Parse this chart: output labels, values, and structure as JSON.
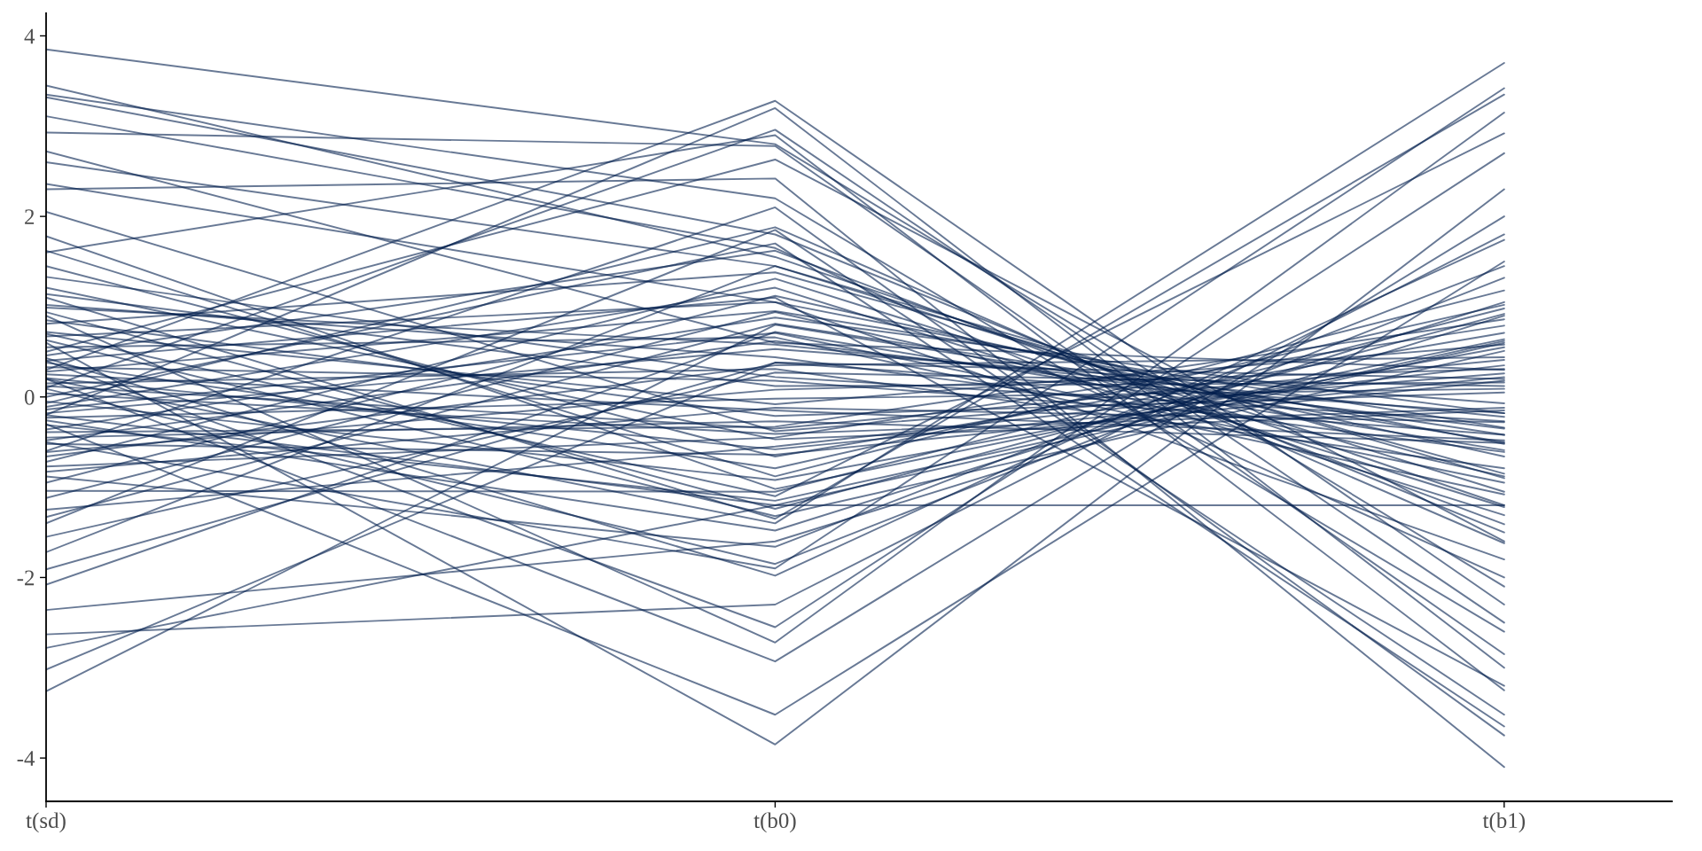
{
  "chart_data": {
    "type": "line",
    "categories": [
      "t(sd)",
      "t(b0)",
      "t(b1)"
    ],
    "color": "#03204f",
    "line_style": "solid",
    "ylim": [
      -4.48,
      4.25
    ],
    "yticks": [
      -4,
      -2,
      0,
      2,
      4
    ],
    "series": [
      {
        "values": [
          0.12,
          -0.35,
          0.41
        ]
      },
      {
        "values": [
          -0.48,
          0.62,
          -0.35
        ]
      },
      {
        "values": [
          0.85,
          -0.21,
          0.05
        ]
      },
      {
        "values": [
          -1.12,
          0.94,
          -0.88
        ]
      },
      {
        "values": [
          0.33,
          0.18,
          -0.42
        ]
      },
      {
        "values": [
          -0.05,
          -0.92,
          0.55
        ]
      },
      {
        "values": [
          -0.72,
          1.31,
          -1.22
        ]
      },
      {
        "values": [
          -0.26,
          -1.48,
          1.05
        ]
      },
      {
        "values": [
          1.02,
          0.44,
          -0.61
        ]
      },
      {
        "values": [
          0.21,
          -0.58,
          0.22
        ]
      },
      {
        "values": [
          0.67,
          1.05,
          -0.52
        ]
      },
      {
        "values": [
          -0.14,
          0.71,
          -0.95
        ]
      },
      {
        "values": [
          -0.39,
          -0.33,
          0.86
        ]
      },
      {
        "values": [
          -0.61,
          0.08,
          0.31
        ]
      },
      {
        "values": [
          0.38,
          -0.79,
          1.02
        ]
      },
      {
        "values": [
          -0.18,
          0.53,
          -0.07
        ]
      },
      {
        "values": [
          0.15,
          0.31,
          -0.79
        ]
      },
      {
        "values": [
          -0.52,
          -0.64,
          0.18
        ]
      },
      {
        "values": [
          0.72,
          -0.08,
          0.58
        ]
      },
      {
        "values": [
          -0.45,
          -0.27,
          -0.51
        ]
      },
      {
        "values": [
          1.62,
          -0.88,
          1.18
        ]
      },
      {
        "values": [
          -1.72,
          1.45,
          -1.05
        ]
      },
      {
        "values": [
          0.46,
          1.62,
          -1.41
        ]
      },
      {
        "values": [
          0.09,
          -1.85,
          1.32
        ]
      },
      {
        "values": [
          1.45,
          -0.66,
          0.71
        ]
      },
      {
        "values": [
          -1.55,
          0.27,
          0.12
        ]
      },
      {
        "values": [
          -0.83,
          -0.12,
          -0.28
        ]
      },
      {
        "values": [
          1.78,
          -1.02,
          0.64
        ]
      },
      {
        "values": [
          -1.91,
          0.38,
          -0.18
        ]
      },
      {
        "values": [
          1.21,
          -0.47,
          -0.15
        ]
      },
      {
        "values": [
          -0.95,
          1.12,
          -0.66
        ]
      },
      {
        "values": [
          0.94,
          -1.24,
          0.92
        ]
      },
      {
        "values": [
          -1.33,
          0.81,
          -0.42
        ]
      },
      {
        "values": [
          2.05,
          -0.38,
          0.26
        ]
      },
      {
        "values": [
          -0.07,
          1.88,
          -1.62
        ]
      },
      {
        "values": [
          -1.04,
          -1.05,
          0.98
        ]
      },
      {
        "values": [
          0.28,
          0.95,
          -0.34
        ]
      },
      {
        "values": [
          1.33,
          0.22,
          -0.27
        ]
      },
      {
        "values": [
          -0.88,
          -1.66,
          1.45
        ]
      },
      {
        "values": [
          0.55,
          0.66,
          -1.08
        ]
      },
      {
        "values": [
          -0.23,
          -0.02,
          0.09
        ]
      },
      {
        "values": [
          0.04,
          -0.41,
          -0.12
        ]
      },
      {
        "values": [
          -0.66,
          0.35,
          0.44
        ]
      },
      {
        "values": [
          0.81,
          1.38,
          -0.85
        ]
      },
      {
        "values": [
          -0.31,
          -1.15,
          0.62
        ]
      },
      {
        "values": [
          1.14,
          0.12,
          0.16
        ]
      },
      {
        "values": [
          -1.25,
          -0.55,
          0.35
        ]
      },
      {
        "values": [
          0.43,
          -1.98,
          1.74
        ]
      },
      {
        "values": [
          -0.11,
          1.21,
          -1.31
        ]
      },
      {
        "values": [
          0.99,
          0.58,
          -0.22
        ]
      },
      {
        "values": [
          -0.77,
          -0.45,
          0.79
        ]
      },
      {
        "values": [
          0.25,
          -0.15,
          -0.48
        ]
      },
      {
        "values": [
          -2.08,
          0.72,
          -0.59
        ]
      },
      {
        "values": [
          0.63,
          -1.32,
          0.51
        ]
      },
      {
        "values": [
          -0.36,
          0.88,
          -0.18
        ]
      },
      {
        "values": [
          3.85,
          2.8,
          -2.1
        ]
      },
      {
        "values": [
          3.45,
          1.55,
          -1.2
        ]
      },
      {
        "values": [
          3.35,
          2.2,
          -2.6
        ]
      },
      {
        "values": [
          3.32,
          1.8,
          -1.5
        ]
      },
      {
        "values": [
          3.11,
          1.65,
          -2.0
        ]
      },
      {
        "values": [
          2.93,
          2.78,
          -2.85
        ]
      },
      {
        "values": [
          2.72,
          0.6,
          0.3
        ]
      },
      {
        "values": [
          2.6,
          1.45,
          -0.9
        ]
      },
      {
        "values": [
          2.36,
          1.05,
          -1.8
        ]
      },
      {
        "values": [
          0.3,
          3.28,
          -2.3
        ]
      },
      {
        "values": [
          -0.2,
          3.2,
          -3.0
        ]
      },
      {
        "values": [
          0.1,
          2.96,
          -2.5
        ]
      },
      {
        "values": [
          1.6,
          2.9,
          -3.25
        ]
      },
      {
        "values": [
          0.5,
          2.63,
          -1.6
        ]
      },
      {
        "values": [
          2.3,
          2.42,
          -4.1
        ]
      },
      {
        "values": [
          0.6,
          -3.85,
          2.3
        ]
      },
      {
        "values": [
          -0.3,
          -3.52,
          1.5
        ]
      },
      {
        "values": [
          0.2,
          -2.93,
          2.0
        ]
      },
      {
        "values": [
          0.9,
          -2.72,
          3.15
        ]
      },
      {
        "values": [
          0.4,
          -2.55,
          2.7
        ]
      },
      {
        "values": [
          -3.26,
          0.8,
          -0.5
        ]
      },
      {
        "values": [
          -3.02,
          0.38,
          0.2
        ]
      },
      {
        "values": [
          -2.78,
          -1.2,
          0.6
        ]
      },
      {
        "values": [
          -2.63,
          -2.3,
          1.8
        ]
      },
      {
        "values": [
          -2.36,
          -1.6,
          0.9
        ]
      },
      {
        "values": [
          0.2,
          -1.4,
          3.7
        ]
      },
      {
        "values": [
          -0.5,
          -1.9,
          3.42
        ]
      },
      {
        "values": [
          1.1,
          -1.35,
          3.35
        ]
      },
      {
        "values": [
          0.7,
          -1.1,
          2.92
        ]
      },
      {
        "values": [
          0.4,
          1.1,
          -3.2
        ]
      },
      {
        "values": [
          -0.6,
          2.1,
          -3.75
        ]
      },
      {
        "values": [
          0.0,
          1.7,
          -3.65
        ]
      },
      {
        "values": [
          -1.4,
          1.85,
          -3.52
        ]
      },
      {
        "values": [
          -0.2,
          -1.2,
          -1.2
        ]
      }
    ]
  }
}
